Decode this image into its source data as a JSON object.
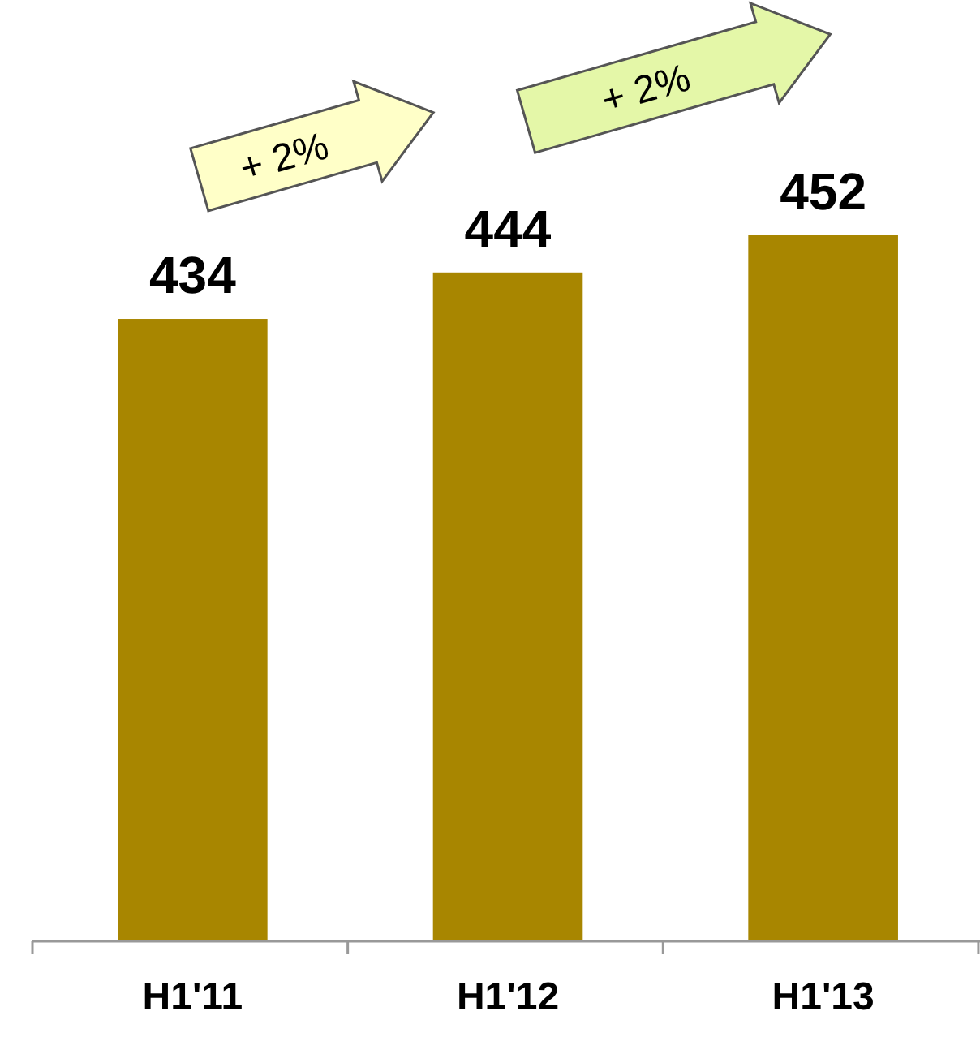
{
  "chart_data": {
    "type": "bar",
    "categories": [
      "H1'11",
      "H1'12",
      "H1'13"
    ],
    "values": [
      434,
      444,
      452
    ],
    "color": "#a88600",
    "ylim": [
      300,
      452
    ],
    "data_labels": true,
    "annotations": [
      "+ 2%",
      "+ 2%"
    ]
  }
}
